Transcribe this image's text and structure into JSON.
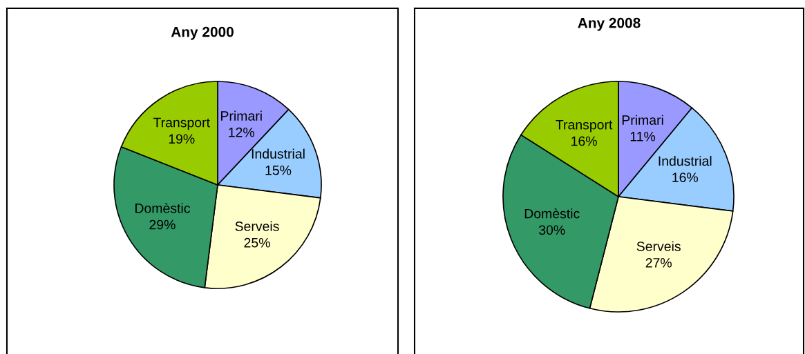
{
  "chart_data": [
    {
      "type": "pie",
      "title": "Any 2000",
      "categories": [
        "Primari",
        "Industrial",
        "Serveis",
        "Domèstic",
        "Transport"
      ],
      "values": [
        12,
        15,
        25,
        29,
        19
      ],
      "value_labels": [
        "12%",
        "15%",
        "25%",
        "29%",
        "19%"
      ],
      "colors": [
        "#9999ff",
        "#99ccff",
        "#ffffcc",
        "#339966",
        "#99cc00"
      ]
    },
    {
      "type": "pie",
      "title": "Any 2008",
      "categories": [
        "Primari",
        "Industrial",
        "Serveis",
        "Domèstic",
        "Transport"
      ],
      "values": [
        11,
        16,
        27,
        30,
        16
      ],
      "value_labels": [
        "11%",
        "16%",
        "27%",
        "30%",
        "16%"
      ],
      "colors": [
        "#9999ff",
        "#99ccff",
        "#ffffcc",
        "#339966",
        "#99cc00"
      ]
    }
  ]
}
